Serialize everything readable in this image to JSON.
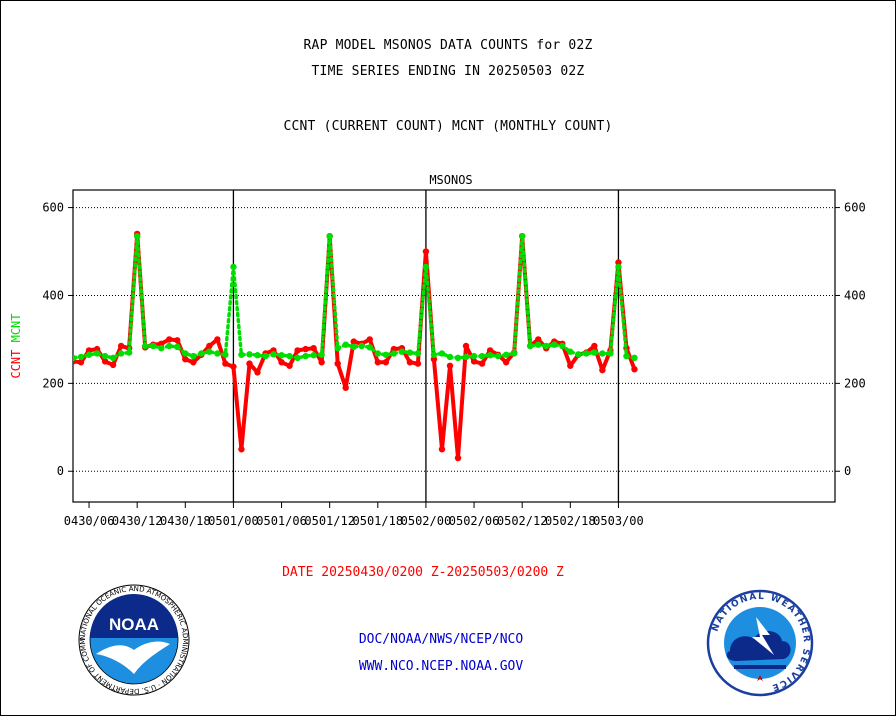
{
  "header": {
    "line1": "RAP MODEL MSONOS DATA COUNTS for 02Z",
    "line2": "TIME SERIES ENDING IN 20250503 02Z",
    "line3": "CCNT (CURRENT COUNT) MCNT (MONTHLY COUNT)"
  },
  "footer": {
    "date_range": "DATE 20250430/0200 Z-20250503/0200 Z",
    "credit_line1": "DOC/NOAA/NWS/NCEP/NCO",
    "credit_line2": "WWW.NCO.NCEP.NOAA.GOV"
  },
  "logos": {
    "noaa_text": "NOAA",
    "noaa_ring": "NATIONAL OCEANIC AND ATMOSPHERIC ADMINISTRATION · U.S. DEPARTMENT OF COMMERCE",
    "nws_ring": "NATIONAL WEATHER SERVICE"
  },
  "colors": {
    "ccnt": "#ff0000",
    "mcnt": "#00dd00",
    "plot_title": "#0000cc",
    "credit": "#0000cc"
  },
  "chart_data": {
    "type": "line",
    "title": "MSONOS",
    "ylabel_parts": [
      {
        "text": "CCNT",
        "color": "#ff0000"
      },
      {
        "text": "MCNT",
        "color": "#00dd00"
      }
    ],
    "ylim": [
      -70,
      640
    ],
    "yticks": [
      0,
      200,
      400,
      600
    ],
    "xlim_hours": [
      -20,
      75
    ],
    "x_unit": "hours from 0501/00 Z",
    "xticks": [
      {
        "hour": -18,
        "label": "0430/06"
      },
      {
        "hour": -12,
        "label": "0430/12"
      },
      {
        "hour": -6,
        "label": "0430/18"
      },
      {
        "hour": 0,
        "label": "0501/00"
      },
      {
        "hour": 6,
        "label": "0501/06"
      },
      {
        "hour": 12,
        "label": "0501/12"
      },
      {
        "hour": 18,
        "label": "0501/18"
      },
      {
        "hour": 24,
        "label": "0502/00"
      },
      {
        "hour": 30,
        "label": "0502/06"
      },
      {
        "hour": 36,
        "label": "0502/12"
      },
      {
        "hour": 42,
        "label": "0502/18"
      },
      {
        "hour": 48,
        "label": "0503/00"
      }
    ],
    "day_lines_hours": [
      0,
      24,
      48
    ],
    "grid": "horizontal dotted",
    "series": [
      {
        "name": "CCNT",
        "color": "#ff0000",
        "x": [
          -22,
          -21,
          -20,
          -19,
          -18,
          -17,
          -16,
          -15,
          -14,
          -13,
          -12,
          -11,
          -10,
          -9,
          -8,
          -7,
          -6,
          -5,
          -4,
          -3,
          -2,
          -1,
          0,
          1,
          2,
          3,
          4,
          5,
          6,
          7,
          8,
          9,
          10,
          11,
          12,
          13,
          14,
          15,
          16,
          17,
          18,
          19,
          20,
          21,
          22,
          23,
          24,
          25,
          26,
          27,
          28,
          29,
          30,
          31,
          32,
          33,
          34,
          35,
          36,
          37,
          38,
          39,
          40,
          41,
          42,
          43,
          44,
          45,
          46,
          47,
          48,
          49,
          50
        ],
        "values": [
          270,
          275,
          250,
          248,
          275,
          278,
          250,
          242,
          285,
          280,
          540,
          282,
          288,
          290,
          300,
          298,
          255,
          248,
          265,
          285,
          300,
          245,
          238,
          50,
          245,
          225,
          268,
          275,
          248,
          240,
          275,
          278,
          280,
          248,
          535,
          245,
          190,
          295,
          290,
          300,
          248,
          248,
          278,
          280,
          248,
          245,
          500,
          255,
          50,
          240,
          30,
          285,
          250,
          245,
          275,
          265,
          248,
          270,
          535,
          285,
          300,
          280,
          295,
          290,
          240,
          265,
          270,
          285,
          230,
          275,
          475,
          280,
          232
        ]
      },
      {
        "name": "MCNT",
        "color": "#00dd00",
        "x": [
          -22,
          -21,
          -20,
          -19,
          -18,
          -17,
          -16,
          -15,
          -14,
          -13,
          -12,
          -11,
          -10,
          -9,
          -8,
          -7,
          -6,
          -5,
          -4,
          -3,
          -2,
          -1,
          0,
          1,
          2,
          3,
          4,
          5,
          6,
          7,
          8,
          9,
          10,
          11,
          12,
          13,
          14,
          15,
          16,
          17,
          18,
          19,
          20,
          21,
          22,
          23,
          24,
          25,
          26,
          27,
          28,
          29,
          30,
          31,
          32,
          33,
          34,
          35,
          36,
          37,
          38,
          39,
          40,
          41,
          42,
          43,
          44,
          45,
          46,
          47,
          48,
          49,
          50
        ],
        "values": [
          270,
          262,
          258,
          260,
          265,
          268,
          262,
          258,
          268,
          270,
          535,
          285,
          285,
          280,
          285,
          283,
          268,
          262,
          268,
          272,
          268,
          265,
          465,
          265,
          266,
          264,
          262,
          266,
          264,
          262,
          258,
          262,
          264,
          265,
          535,
          280,
          288,
          283,
          285,
          282,
          268,
          265,
          268,
          272,
          270,
          268,
          465,
          265,
          268,
          260,
          258,
          260,
          262,
          262,
          264,
          262,
          265,
          268,
          535,
          285,
          288,
          285,
          288,
          285,
          272,
          266,
          268,
          270,
          268,
          268,
          465,
          262,
          258
        ]
      }
    ]
  }
}
